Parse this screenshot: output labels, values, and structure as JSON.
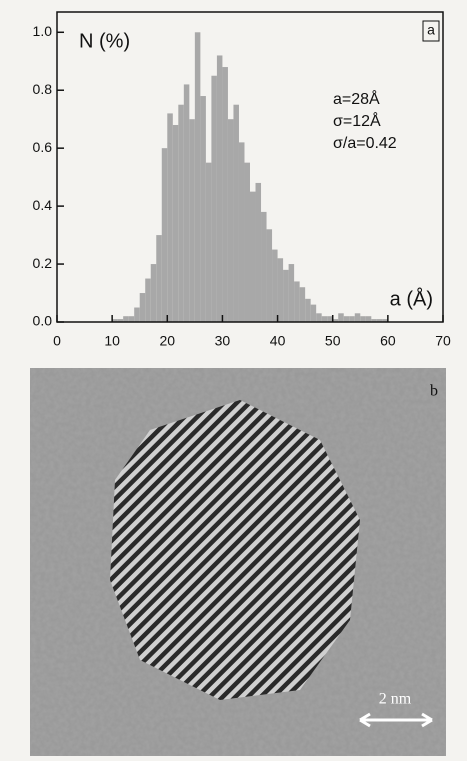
{
  "chart_data": {
    "type": "histogram",
    "panel_label": "a",
    "ylabel": "N (%)",
    "xlabel": "a (Å)",
    "annotations": [
      "a=28Å",
      "σ=12Å",
      "σ/a=0.42"
    ],
    "bins": [
      10,
      11,
      12,
      13,
      14,
      15,
      16,
      17,
      18,
      19,
      20,
      21,
      22,
      23,
      24,
      25,
      26,
      27,
      28,
      29,
      30,
      31,
      32,
      33,
      34,
      35,
      36,
      37,
      38,
      39,
      40,
      41,
      42,
      43,
      44,
      45,
      46,
      47,
      48,
      49,
      50,
      51,
      52,
      53,
      54,
      55,
      56,
      57,
      58,
      59,
      60
    ],
    "values": [
      0.01,
      0.01,
      0.02,
      0.02,
      0.05,
      0.1,
      0.15,
      0.2,
      0.3,
      0.6,
      0.72,
      0.68,
      0.75,
      0.82,
      0.7,
      1.0,
      0.78,
      0.55,
      0.85,
      0.92,
      0.88,
      0.7,
      0.75,
      0.62,
      0.55,
      0.45,
      0.48,
      0.38,
      0.32,
      0.25,
      0.22,
      0.18,
      0.2,
      0.14,
      0.12,
      0.08,
      0.06,
      0.03,
      0.02,
      0.02,
      0.01,
      0.03,
      0.02,
      0.02,
      0.03,
      0.02,
      0.02,
      0.01,
      0.01,
      0.01
    ],
    "color": "#a8a8a8",
    "xlim": [
      0,
      70
    ],
    "xticks": [
      0,
      10,
      20,
      30,
      40,
      50,
      60,
      70
    ],
    "ylim": [
      0,
      1.07
    ],
    "yticks": [
      {
        "value": 0,
        "label": "0.0"
      },
      0.2,
      0.4,
      0.6,
      0.8,
      {
        "value": 1,
        "label": "1.0"
      }
    ]
  },
  "image_panel": {
    "label": "b",
    "scale_bar": "2 nm"
  }
}
